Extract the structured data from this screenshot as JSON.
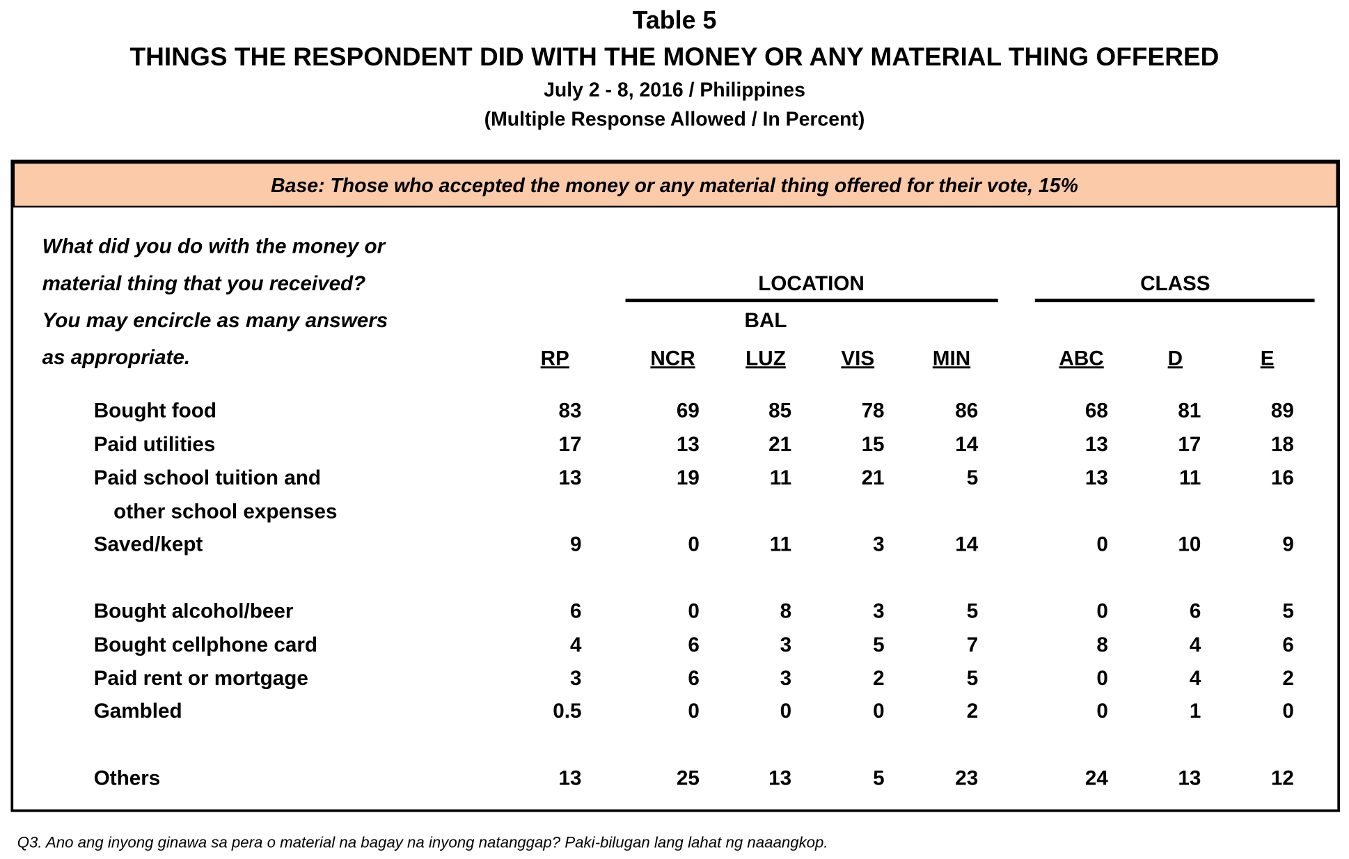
{
  "header": {
    "title": "Table 5",
    "heading": "THINGS THE RESPONDENT DID WITH THE MONEY OR ANY MATERIAL THING OFFERED",
    "date": "July 2 - 8, 2016 / Philippines",
    "note": "(Multiple Response Allowed / In Percent)"
  },
  "table": {
    "base": "Base: Those who accepted the money or any material thing offered for their vote, 15%",
    "question": [
      "What did you do with the money or",
      "material thing that you received?",
      "You may encircle as many answers",
      "as appropriate."
    ],
    "groups": [
      "LOCATION",
      "CLASS"
    ],
    "subheader": "BAL",
    "columns": [
      "RP",
      "NCR",
      "LUZ",
      "VIS",
      "MIN",
      "ABC",
      "D",
      "E"
    ],
    "rows": [
      {
        "label": [
          "Bought food"
        ],
        "values": [
          "83",
          "69",
          "85",
          "78",
          "86",
          "68",
          "81",
          "89"
        ]
      },
      {
        "label": [
          "Paid utilities"
        ],
        "values": [
          "17",
          "13",
          "21",
          "15",
          "14",
          "13",
          "17",
          "18"
        ]
      },
      {
        "label": [
          "Paid school tuition and",
          "other school expenses"
        ],
        "values": [
          "13",
          "19",
          "11",
          "21",
          "5",
          "13",
          "11",
          "16"
        ]
      },
      {
        "label": [
          "Saved/kept"
        ],
        "values": [
          "9",
          "0",
          "11",
          "3",
          "14",
          "0",
          "10",
          "9"
        ]
      },
      {
        "label": [
          "Bought alcohol/beer"
        ],
        "values": [
          "6",
          "0",
          "8",
          "3",
          "5",
          "0",
          "6",
          "5"
        ]
      },
      {
        "label": [
          "Bought cellphone card"
        ],
        "values": [
          "4",
          "6",
          "3",
          "5",
          "7",
          "8",
          "4",
          "6"
        ]
      },
      {
        "label": [
          "Paid rent or mortgage"
        ],
        "values": [
          "3",
          "6",
          "3",
          "2",
          "5",
          "0",
          "4",
          "2"
        ]
      },
      {
        "label": [
          "Gambled"
        ],
        "values": [
          "0.5",
          "0",
          "0",
          "0",
          "2",
          "0",
          "1",
          "0"
        ]
      },
      {
        "label": [
          "Others"
        ],
        "values": [
          "13",
          "25",
          "13",
          "5",
          "23",
          "24",
          "13",
          "12"
        ]
      }
    ]
  },
  "footnote": "Q3.  Ano ang inyong ginawa sa pera o material na bagay na inyong natanggap? Paki-bilugan lang lahat ng naaangkop."
}
